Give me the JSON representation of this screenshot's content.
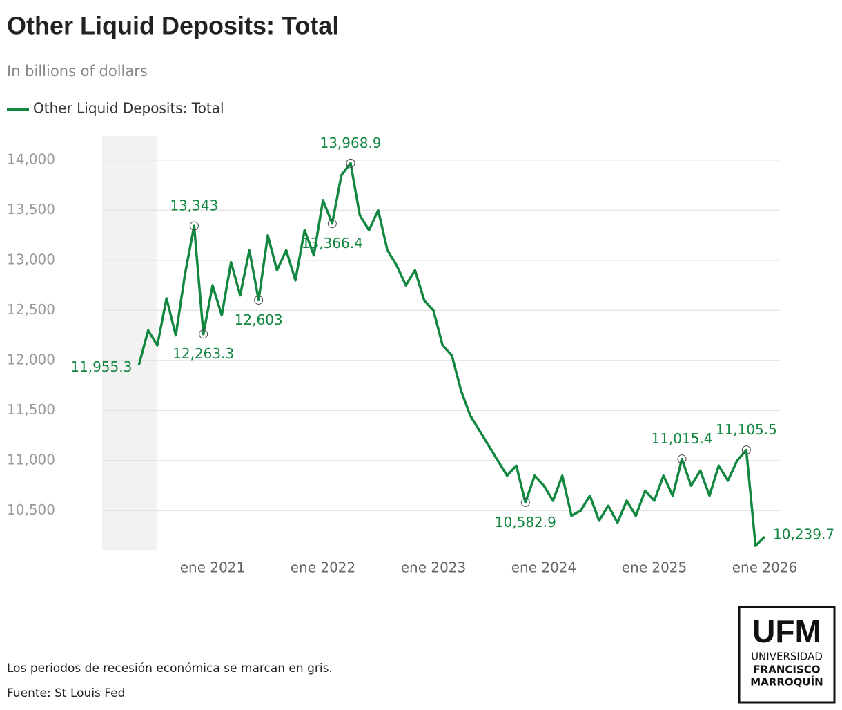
{
  "chart_data": {
    "type": "line",
    "title": "Other Liquid Deposits: Total",
    "subtitle": "In billions of dollars",
    "x": [
      "2020-05",
      "2020-06",
      "2020-07",
      "2020-08",
      "2020-09",
      "2020-10",
      "2020-11",
      "2020-12",
      "2021-01",
      "2021-02",
      "2021-03",
      "2021-04",
      "2021-05",
      "2021-06",
      "2021-07",
      "2021-08",
      "2021-09",
      "2021-10",
      "2021-11",
      "2021-12",
      "2022-01",
      "2022-02",
      "2022-03",
      "2022-04",
      "2022-05",
      "2022-06",
      "2022-07",
      "2022-08",
      "2022-09",
      "2022-10",
      "2022-11",
      "2022-12",
      "2023-01",
      "2023-02",
      "2023-03",
      "2023-04",
      "2023-05",
      "2023-06",
      "2023-07",
      "2023-08",
      "2023-09",
      "2023-10",
      "2023-11",
      "2023-12",
      "2024-01",
      "2024-02",
      "2024-03",
      "2024-04",
      "2024-05",
      "2024-06",
      "2024-07",
      "2024-08",
      "2024-09",
      "2024-10",
      "2024-11",
      "2024-12",
      "2025-01",
      "2025-02",
      "2025-03",
      "2025-04",
      "2025-05",
      "2025-06",
      "2025-07",
      "2025-08",
      "2025-09",
      "2025-10",
      "2025-11",
      "2025-12",
      "2026-01"
    ],
    "series": [
      {
        "name": "Other Liquid Deposits: Total",
        "color": "#12873f",
        "values": [
          11955.3,
          12300,
          12150,
          12620,
          12250,
          12860,
          13343,
          12263.3,
          12750,
          12450,
          12980,
          12650,
          13100,
          12603,
          13250,
          12900,
          13100,
          12800,
          13300,
          13050,
          13600,
          13366.4,
          13850,
          13968.9,
          13450,
          13300,
          13500,
          13100,
          12950,
          12750,
          12900,
          12600,
          12500,
          12150,
          12050,
          11700,
          11450,
          11300,
          11150,
          11000,
          10850,
          10950,
          10582.9,
          10850,
          10750,
          10600,
          10850,
          10450,
          10500,
          10650,
          10400,
          10550,
          10380,
          10600,
          10450,
          10700,
          10600,
          10850,
          10650,
          11015.4,
          10750,
          10900,
          10650,
          10950,
          10800,
          11000,
          11105.5,
          10150,
          10239.7
        ],
        "value_labels": [
          "11,955.3",
          null,
          null,
          null,
          null,
          null,
          "13,343",
          "12,263.3",
          null,
          null,
          null,
          null,
          null,
          "12,603",
          null,
          null,
          null,
          null,
          null,
          null,
          null,
          "13,366.4",
          null,
          "13,968.9",
          null,
          null,
          null,
          null,
          null,
          null,
          null,
          null,
          null,
          null,
          null,
          null,
          null,
          null,
          null,
          null,
          null,
          null,
          "10,582.9",
          null,
          null,
          null,
          null,
          null,
          null,
          null,
          null,
          null,
          null,
          null,
          null,
          null,
          null,
          null,
          null,
          "11,015.4",
          null,
          null,
          null,
          null,
          null,
          null,
          "11,105.5",
          null,
          "10,239.7"
        ]
      }
    ],
    "xticks": [
      {
        "value": "2021-01",
        "label": "ene 2021"
      },
      {
        "value": "2022-01",
        "label": "ene 2022"
      },
      {
        "value": "2023-01",
        "label": "ene 2023"
      },
      {
        "value": "2024-01",
        "label": "ene 2024"
      },
      {
        "value": "2025-01",
        "label": "ene 2025"
      },
      {
        "value": "2026-01",
        "label": "ene 2026"
      }
    ],
    "ylim": [
      10110,
      14240
    ],
    "yticks": [
      {
        "value": 10500,
        "label": "10,500"
      },
      {
        "value": 11000,
        "label": "11,000"
      },
      {
        "value": 11500,
        "label": "11,500"
      },
      {
        "value": 12000,
        "label": "12,000"
      },
      {
        "value": 12500,
        "label": "12,500"
      },
      {
        "value": 13000,
        "label": "13,000"
      },
      {
        "value": 13500,
        "label": "13,500"
      },
      {
        "value": 14000,
        "label": "14,000"
      }
    ],
    "grid": true,
    "recession": {
      "start": "2020-01",
      "end": "2020-07",
      "color": "#f2f2f2"
    },
    "note": "Los periodos de recesión económica se marcan en gris.",
    "source": "Fuente: St Louis Fed"
  },
  "logo": {
    "name": "UFM",
    "line1": "UNIVERSIDAD",
    "line2": "FRANCISCO",
    "line3": "MARROQUÍN"
  }
}
